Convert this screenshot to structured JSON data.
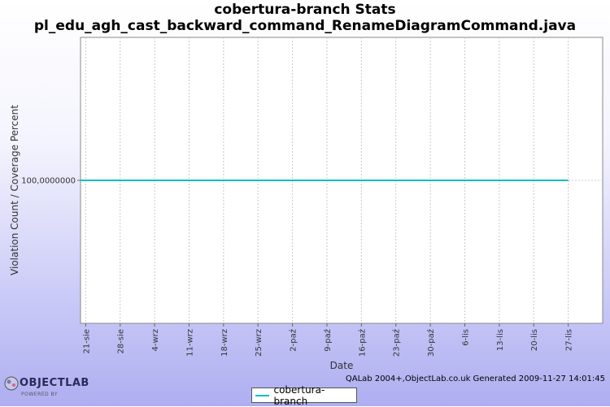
{
  "header": {
    "title_line1": "cobertura-branch  Stats",
    "title_line2": "pl_edu_agh_cast_backward_command_RenameDiagramCommand.java"
  },
  "footer": {
    "generated": "QALab 2004+,ObjectLab.co.uk Generated 2009-11-27 14:01:45",
    "logo_text": "OBJECTLAB",
    "logo_subtext": "POWERED BY"
  },
  "chart_data": {
    "type": "line",
    "xlabel": "Date",
    "ylabel": "Violation Count / Coverage Percent",
    "categories": [
      "21-sie",
      "28-sie",
      "4-wrz",
      "11-wrz",
      "18-wrz",
      "25-wrz",
      "2-paź",
      "9-paź",
      "16-paź",
      "23-paź",
      "30-paź",
      "6-lis",
      "13-lis",
      "20-lis",
      "27-lis"
    ],
    "y_tick_labels": [
      "100,0000000"
    ],
    "y_tick_values": [
      100
    ],
    "ylim": [
      0,
      200
    ],
    "x_range": [
      -0.15,
      15.0
    ],
    "series": [
      {
        "name": "cobertura-branch",
        "color": "#00c0c0",
        "x": [
          -0.15,
          14.0
        ],
        "y": [
          100,
          100
        ]
      }
    ],
    "grid": true,
    "legend_position": "bottom"
  }
}
